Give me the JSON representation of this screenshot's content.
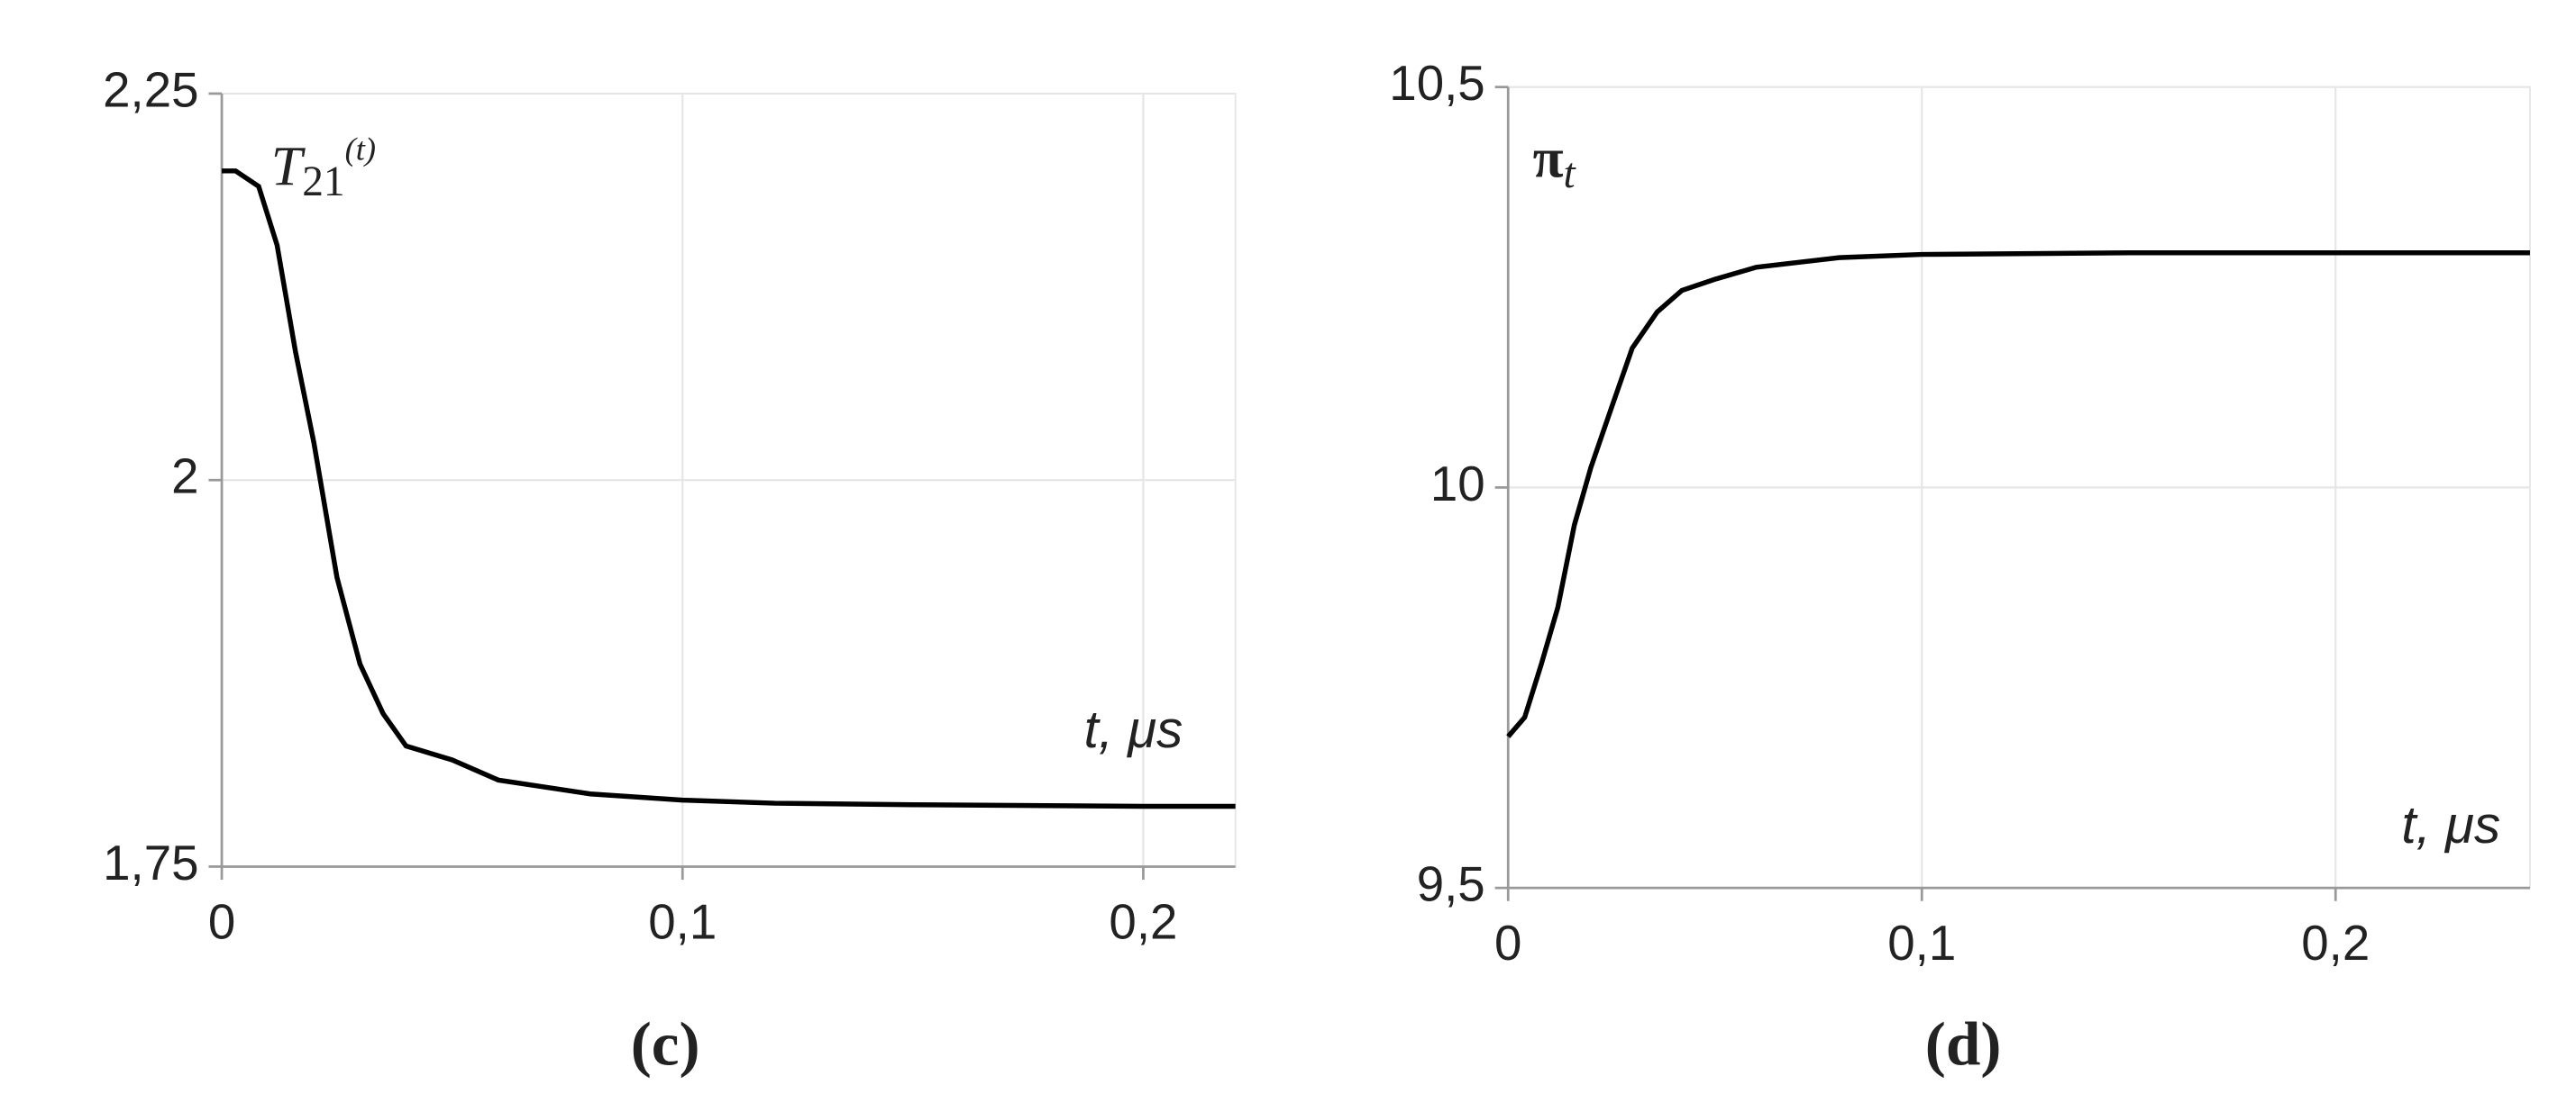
{
  "chart_data": [
    {
      "type": "line",
      "label": "(c)",
      "annotation": {
        "base": "T",
        "sub": "21",
        "sup": "(t)"
      },
      "x_label": "t, μs",
      "x": [
        0,
        0.003,
        0.008,
        0.012,
        0.016,
        0.02,
        0.025,
        0.03,
        0.035,
        0.04,
        0.05,
        0.06,
        0.08,
        0.1,
        0.12,
        0.15,
        0.2,
        0.22
      ],
      "values": [
        2.2,
        2.2,
        2.19,
        2.152,
        2.083,
        2.024,
        1.937,
        1.881,
        1.849,
        1.828,
        1.819,
        1.806,
        1.797,
        1.793,
        1.791,
        1.79,
        1.789,
        1.789
      ],
      "color": "#000000",
      "xlim": [
        0,
        0.22
      ],
      "ylim": [
        1.75,
        2.25
      ],
      "xticks": [
        0,
        {
          "value": 0.1,
          "label": "0,1"
        },
        {
          "value": 0.2,
          "label": "0,2"
        }
      ],
      "yticks": [
        {
          "value": 1.75,
          "label": "1,75"
        },
        2,
        {
          "value": 2.25,
          "label": "2,25"
        }
      ],
      "grid": true
    },
    {
      "type": "line",
      "label": "(d)",
      "annotation": {
        "base": "π",
        "sub": "t"
      },
      "x_label": "t, μs",
      "x": [
        0,
        0.004,
        0.008,
        0.012,
        0.016,
        0.02,
        0.025,
        0.03,
        0.036,
        0.042,
        0.05,
        0.06,
        0.08,
        0.1,
        0.15,
        0.2,
        0.247
      ],
      "values": [
        9.689,
        9.713,
        9.779,
        9.85,
        9.953,
        10.025,
        10.1,
        10.174,
        10.219,
        10.246,
        10.26,
        10.275,
        10.287,
        10.291,
        10.293,
        10.293,
        10.293
      ],
      "color": "#000000",
      "xlim": [
        0,
        0.247
      ],
      "ylim": [
        9.5,
        10.5
      ],
      "xticks": [
        0,
        {
          "value": 0.1,
          "label": "0,1"
        },
        {
          "value": 0.2,
          "label": "0,2"
        }
      ],
      "yticks": [
        {
          "value": 9.5,
          "label": "9,5"
        },
        10,
        {
          "value": 10.5,
          "label": "10,5"
        }
      ],
      "grid": true
    }
  ]
}
